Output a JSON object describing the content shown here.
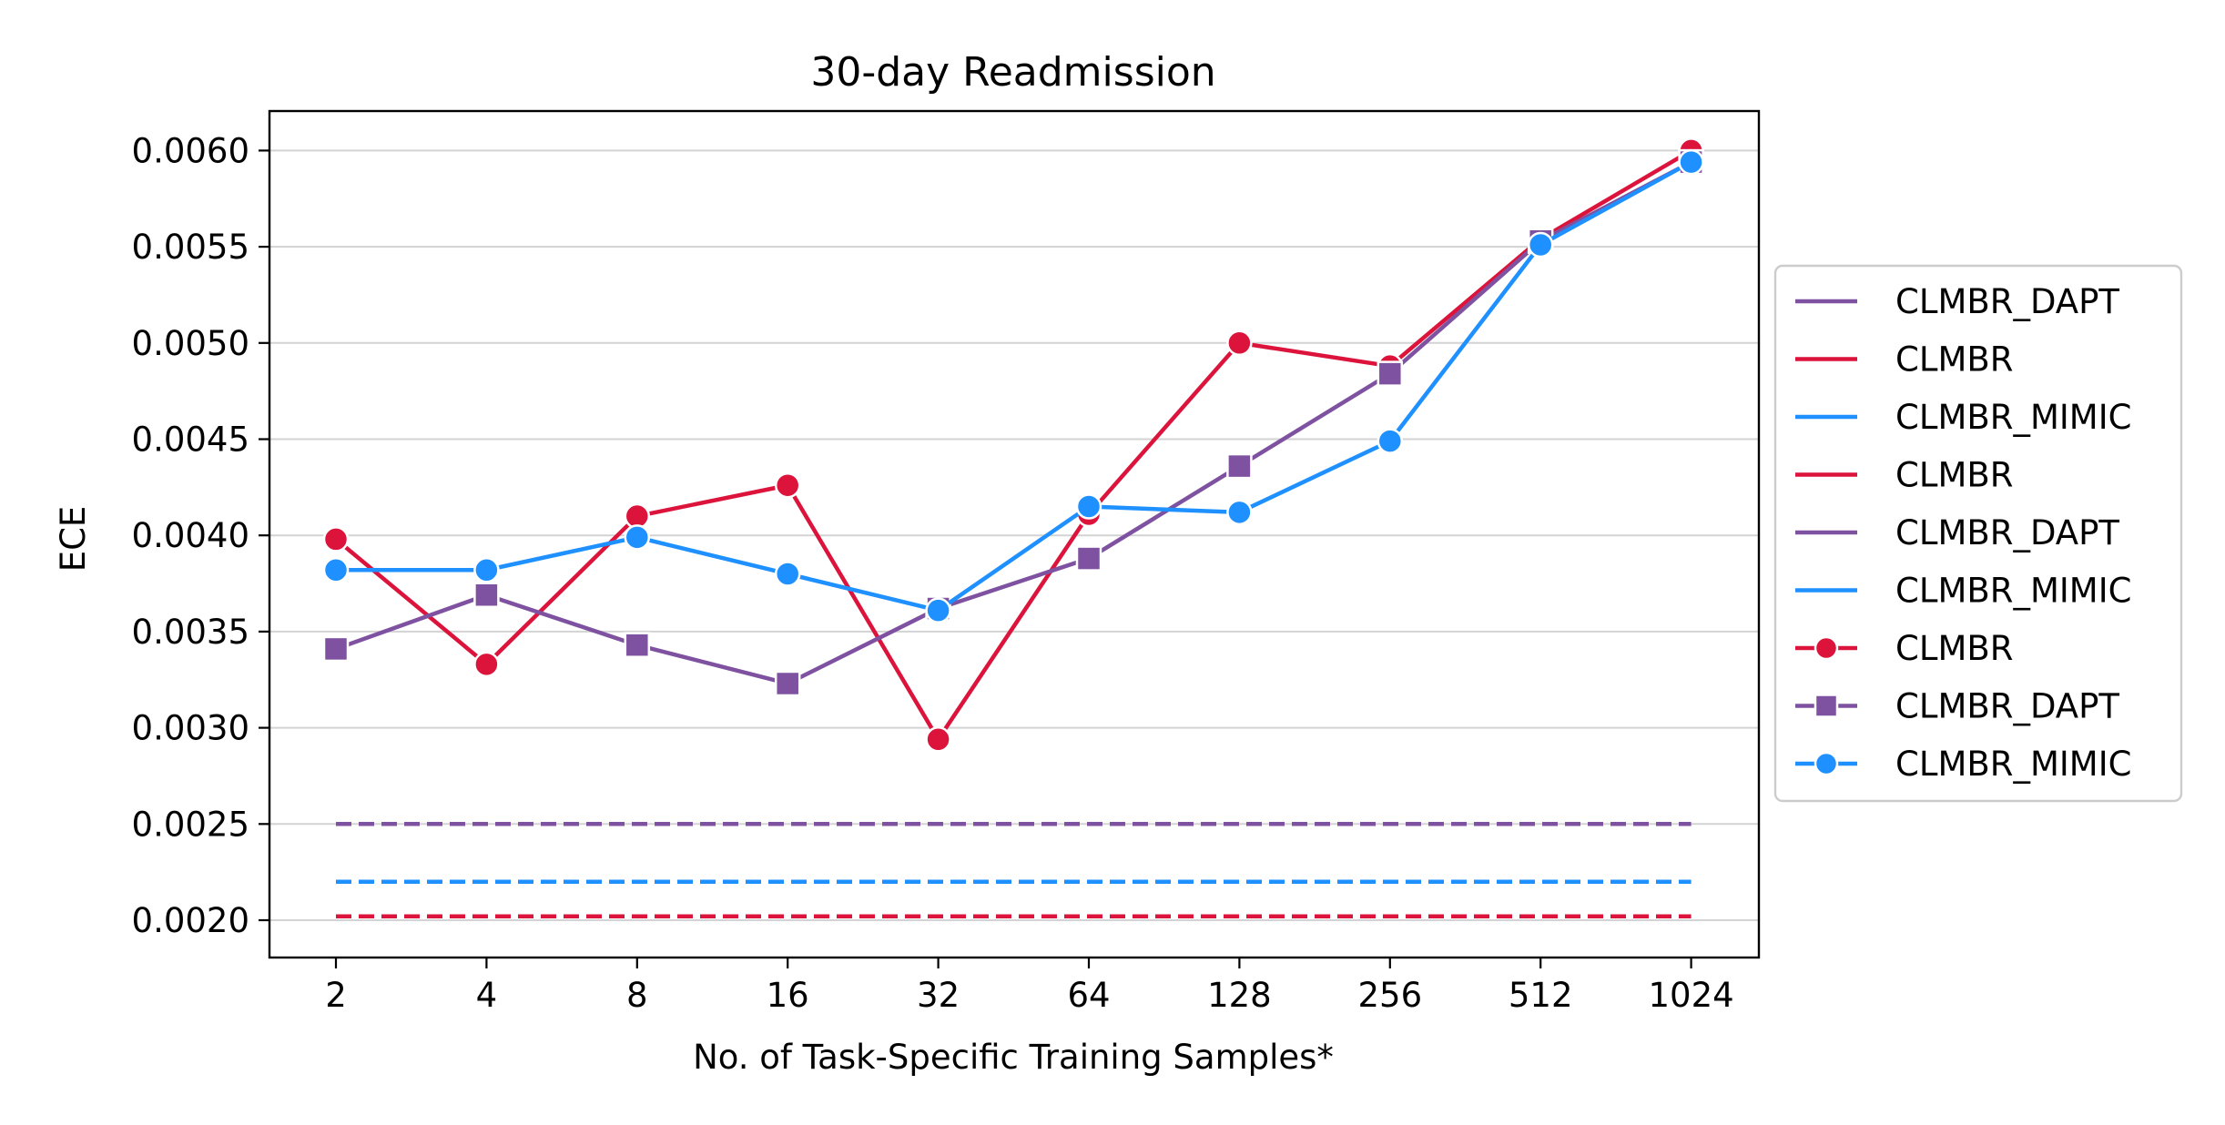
{
  "chart_data": {
    "type": "line",
    "title": "30-day Readmission",
    "xlabel": "No. of Task-Specific Training Samples*",
    "ylabel": "ECE",
    "x_scale": "log2",
    "x": [
      2,
      4,
      8,
      16,
      32,
      64,
      128,
      256,
      512,
      1024
    ],
    "x_tick_labels": [
      "2",
      "4",
      "8",
      "16",
      "32",
      "64",
      "128",
      "256",
      "512",
      "1024"
    ],
    "ylim": [
      0.0018,
      0.0062
    ],
    "y_ticks": [
      0.002,
      0.0025,
      0.003,
      0.0035,
      0.004,
      0.0045,
      0.005,
      0.0055,
      0.006
    ],
    "y_tick_labels": [
      "0.0020",
      "0.0025",
      "0.0030",
      "0.0035",
      "0.0040",
      "0.0045",
      "0.0050",
      "0.0055",
      "0.0060"
    ],
    "grid": "horizontal",
    "legend_placement": "outside-right",
    "colors": {
      "CLMBR": "#dc143c",
      "CLMBR_DAPT": "#7e52a0",
      "CLMBR_MIMIC": "#1e90ff"
    },
    "baselines": [
      {
        "name": "CLMBR_DAPT",
        "value": 0.0025,
        "color": "#7e52a0",
        "style": "dashed"
      },
      {
        "name": "CLMBR_MIMIC",
        "value": 0.0022,
        "color": "#1e90ff",
        "style": "dashed"
      },
      {
        "name": "CLMBR",
        "value": 0.00202,
        "color": "#dc143c",
        "style": "dashed"
      }
    ],
    "series": [
      {
        "name": "CLMBR",
        "color": "#dc143c",
        "marker": "circle",
        "values": [
          0.00398,
          0.00333,
          0.0041,
          0.00426,
          0.00294,
          0.00411,
          0.005,
          0.00488,
          0.00554,
          0.006
        ]
      },
      {
        "name": "CLMBR_DAPT",
        "color": "#7e52a0",
        "marker": "square",
        "values": [
          0.00341,
          0.00369,
          0.00343,
          0.00323,
          0.00362,
          0.00388,
          0.00436,
          0.00484,
          0.00553,
          0.00594
        ]
      },
      {
        "name": "CLMBR_MIMIC",
        "color": "#1e90ff",
        "marker": "circle",
        "values": [
          0.00382,
          0.00382,
          0.00399,
          0.0038,
          0.00361,
          0.00415,
          0.00412,
          0.00449,
          0.00551,
          0.00594
        ]
      }
    ],
    "legend": [
      {
        "label": "CLMBR_DAPT",
        "color": "#7e52a0",
        "marker": "none"
      },
      {
        "label": "CLMBR",
        "color": "#dc143c",
        "marker": "none"
      },
      {
        "label": "CLMBR_MIMIC",
        "color": "#1e90ff",
        "marker": "none"
      },
      {
        "label": "CLMBR",
        "color": "#dc143c",
        "marker": "none"
      },
      {
        "label": "CLMBR_DAPT",
        "color": "#7e52a0",
        "marker": "none"
      },
      {
        "label": "CLMBR_MIMIC",
        "color": "#1e90ff",
        "marker": "none"
      },
      {
        "label": "CLMBR",
        "color": "#dc143c",
        "marker": "circle"
      },
      {
        "label": "CLMBR_DAPT",
        "color": "#7e52a0",
        "marker": "square"
      },
      {
        "label": "CLMBR_MIMIC",
        "color": "#1e90ff",
        "marker": "circle"
      }
    ]
  }
}
